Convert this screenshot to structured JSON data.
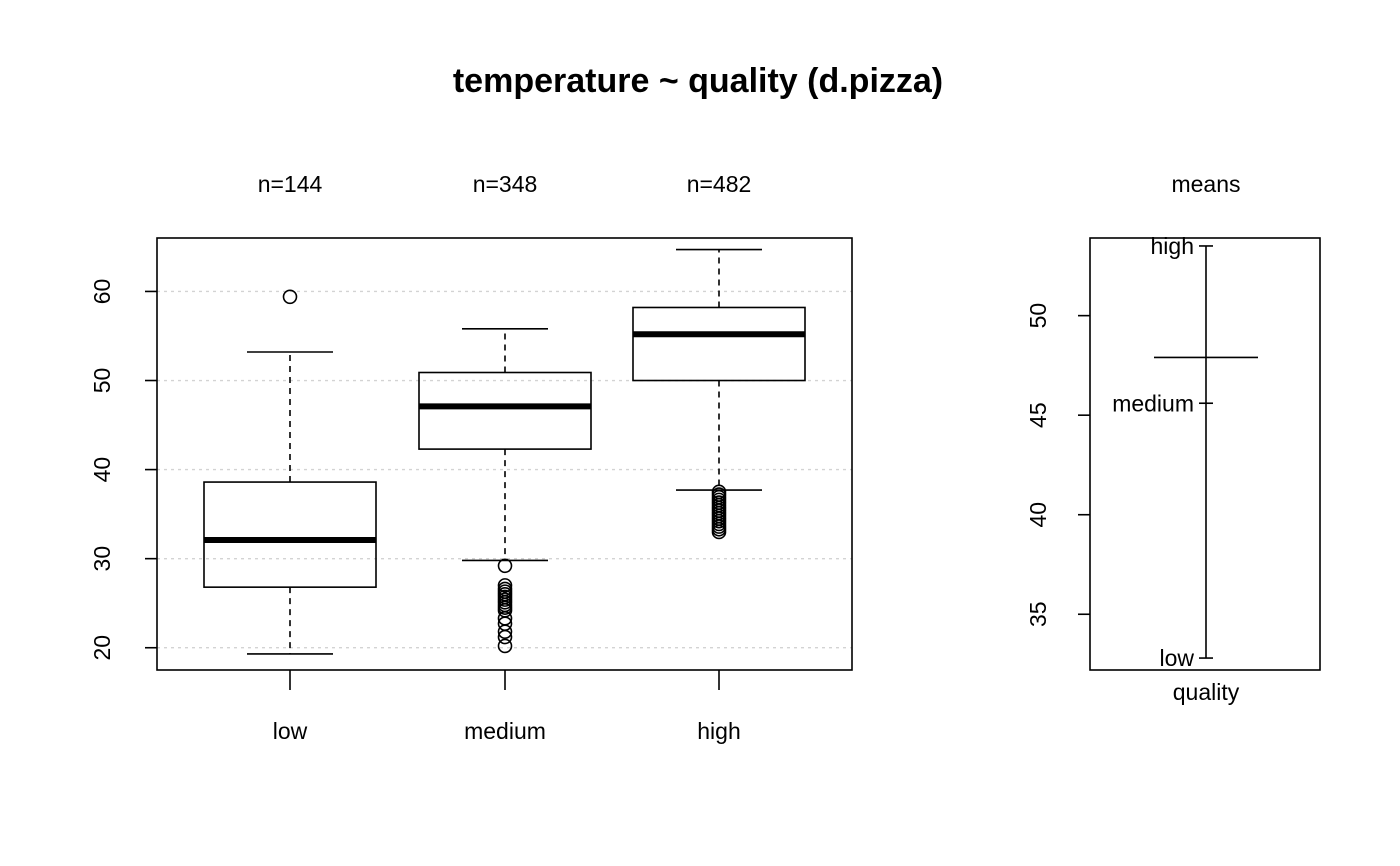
{
  "chart_data": [
    {
      "type": "box",
      "title": "temperature ~ quality (d.pizza)",
      "categories": [
        "low",
        "medium",
        "high"
      ],
      "counts": [
        "n=144",
        "n=348",
        "n=482"
      ],
      "ylim": [
        17.5,
        66
      ],
      "yticks": [
        20,
        30,
        40,
        50,
        60
      ],
      "grid": true,
      "boxes": [
        {
          "name": "low",
          "whisker_low": 19.3,
          "q1": 26.8,
          "median": 32.1,
          "q3": 38.6,
          "whisker_high": 53.2,
          "outliers": [
            59.4
          ]
        },
        {
          "name": "medium",
          "whisker_low": 29.8,
          "q1": 42.3,
          "median": 47.1,
          "q3": 50.9,
          "whisker_high": 55.8,
          "outliers": [
            29.2,
            27.0,
            26.6,
            26.3,
            26.0,
            25.7,
            25.4,
            25.1,
            24.8,
            24.5,
            24.2,
            23.3,
            22.7,
            21.8,
            21.2,
            20.2
          ]
        },
        {
          "name": "high",
          "whisker_low": 37.7,
          "q1": 50.0,
          "median": 55.2,
          "q3": 58.2,
          "whisker_high": 64.7,
          "outliers": [
            37.5,
            37.2,
            36.9,
            36.6,
            36.3,
            36.0,
            35.7,
            35.4,
            35.1,
            34.8,
            34.5,
            34.2,
            33.9,
            33.6,
            33.3,
            33.0
          ]
        }
      ]
    },
    {
      "type": "means",
      "title": "means",
      "xlabel": "quality",
      "ylim": [
        32.2,
        53.9
      ],
      "yticks": [
        35,
        40,
        45,
        50
      ],
      "overall_mean": 47.9,
      "points": [
        {
          "label": "high",
          "value": 53.5
        },
        {
          "label": "medium",
          "value": 45.6
        },
        {
          "label": "low",
          "value": 32.8
        }
      ]
    }
  ]
}
